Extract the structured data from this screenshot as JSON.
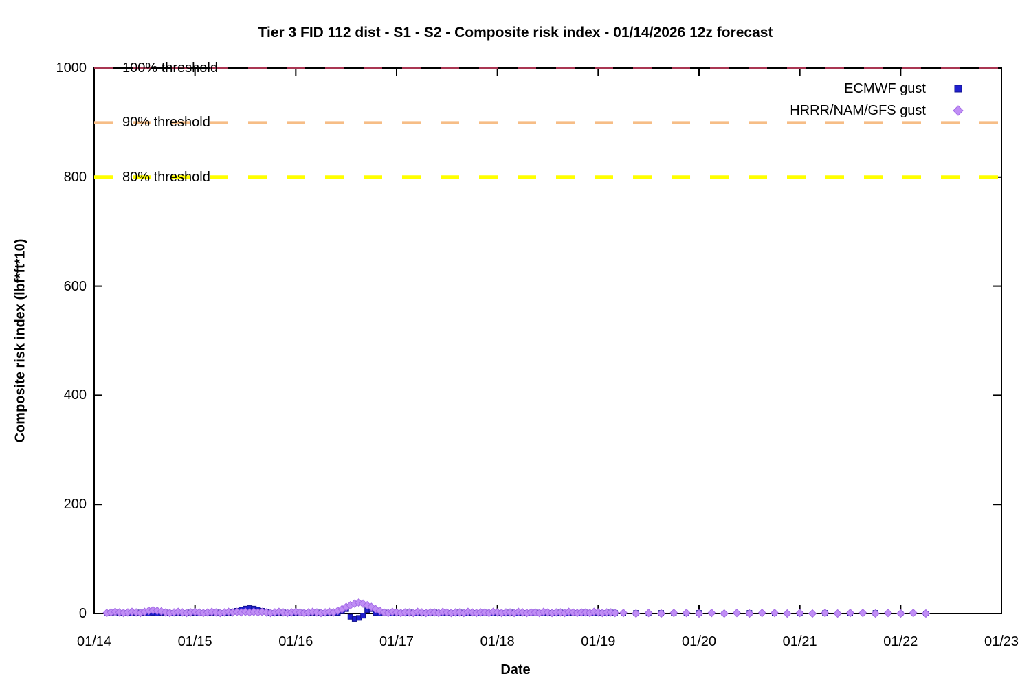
{
  "title": "Tier 3 FID 112 dist - S1 - S2 - Composite risk index - 01/14/2026 12z forecast",
  "axes": {
    "x_label": "Date",
    "y_label": "Composite risk index (lbf*ft*10)",
    "x_ticks": [
      "01/14",
      "01/15",
      "01/16",
      "01/17",
      "01/18",
      "01/19",
      "01/20",
      "01/21",
      "01/22",
      "01/23"
    ],
    "y_ticks": [
      0,
      200,
      400,
      600,
      800,
      1000
    ]
  },
  "legend": {
    "items": [
      {
        "label": "ECMWF gust",
        "marker": "square",
        "color": "#2020cf"
      },
      {
        "label": "HRRR/NAM/GFS gust",
        "marker": "diamond",
        "color": "#c08ef5"
      }
    ]
  },
  "chart_data": {
    "type": "scatter",
    "title": "Tier 3 FID 112 dist - S1 - S2 - Composite risk index - 01/14/2026 12z forecast",
    "xlabel": "Date",
    "ylabel": "Composite risk index (lbf*ft*10)",
    "x_unit": "days after 01/14 00z",
    "xlim_days": [
      0,
      9
    ],
    "ylim": [
      0,
      1000
    ],
    "grid": false,
    "legend_position": "top-right-inside",
    "thresholds": [
      {
        "label": "100% threshold",
        "value": 1000,
        "color": "#a93652",
        "style": "dashed"
      },
      {
        "label": "90% threshold",
        "value": 900,
        "color": "#f6bd86",
        "style": "dashed"
      },
      {
        "label": "80% threshold",
        "value": 800,
        "color": "#ffff00",
        "style": "dashed"
      }
    ],
    "series": [
      {
        "name": "ECMWF gust",
        "marker": "square",
        "color": "#2020cf",
        "edge_color": "#12128c",
        "segments": [
          {
            "x_start": 0.125,
            "x_step": 0.0416667,
            "y": [
              0,
              1,
              2,
              1,
              0,
              1,
              0,
              1,
              2,
              1,
              0,
              1,
              0,
              1,
              2,
              1,
              0,
              1,
              0,
              1,
              2,
              1,
              0,
              1,
              0,
              1,
              2,
              1,
              0,
              1,
              3,
              5,
              7,
              9,
              10,
              9,
              7,
              5,
              3,
              1,
              0,
              1,
              2,
              1,
              0,
              1,
              2,
              1,
              0,
              1,
              2,
              1,
              0,
              1,
              2,
              1,
              4,
              8,
              -6,
              -10,
              -8,
              -4,
              6,
              8,
              1,
              0,
              2,
              1,
              0,
              1,
              1,
              0,
              2,
              1,
              0,
              1,
              1,
              0,
              2,
              1,
              0,
              1,
              1,
              0,
              2,
              1,
              0,
              1,
              1,
              0,
              2,
              1,
              0,
              1,
              1,
              0,
              2,
              1,
              0,
              1,
              1,
              0,
              2,
              1,
              0,
              1,
              1,
              0,
              2,
              1,
              0,
              1,
              1,
              0,
              2,
              1,
              0,
              1,
              1,
              0,
              2,
              1
            ]
          },
          {
            "x_start": 5.25,
            "x_step": 0.125,
            "y": [
              0,
              1,
              0,
              1,
              0,
              0,
              1
            ]
          },
          {
            "x_start": 6.25,
            "x_step": 0.25,
            "y": [
              0,
              1,
              0,
              0,
              1,
              0,
              1,
              0,
              0
            ]
          }
        ]
      },
      {
        "name": "HRRR/NAM/GFS gust",
        "marker": "diamond",
        "color": "#c08ef5",
        "edge_color": "#a36ae6",
        "segments": [
          {
            "x_start": 0.125,
            "x_step": 0.0416667,
            "y": [
              1,
              2,
              3,
              2,
              1,
              2,
              3,
              2,
              1,
              3,
              5,
              6,
              5,
              4,
              2,
              1,
              2,
              3,
              2,
              1,
              2,
              3,
              2,
              1,
              2,
              3,
              2,
              1,
              2,
              3,
              2,
              3,
              2,
              3,
              2,
              3,
              2,
              3,
              2,
              1,
              2,
              3,
              2,
              1,
              2,
              3,
              2,
              1,
              2,
              3,
              2,
              1,
              2,
              3,
              2,
              5,
              8,
              12,
              15,
              18,
              20,
              18,
              15,
              12,
              8,
              5,
              2,
              1,
              3,
              2,
              1,
              2,
              2,
              1,
              3,
              2,
              1,
              2,
              2,
              1,
              3,
              2,
              1,
              2,
              2,
              1,
              3,
              2,
              1,
              2,
              2,
              1,
              3,
              2,
              1,
              2,
              2,
              1,
              3,
              2,
              1,
              2,
              2,
              1,
              3,
              2,
              1,
              2,
              2,
              1,
              3,
              2,
              1,
              2,
              2,
              1,
              3,
              2,
              1,
              2,
              2,
              1
            ]
          },
          {
            "x_start": 5.25,
            "x_step": 0.125,
            "y": [
              1,
              0,
              1,
              0,
              1,
              1,
              0,
              1,
              0,
              1,
              0,
              1,
              1,
              0,
              1,
              0,
              1,
              0,
              1,
              1,
              0,
              1,
              0,
              1,
              0
            ]
          }
        ]
      }
    ]
  }
}
